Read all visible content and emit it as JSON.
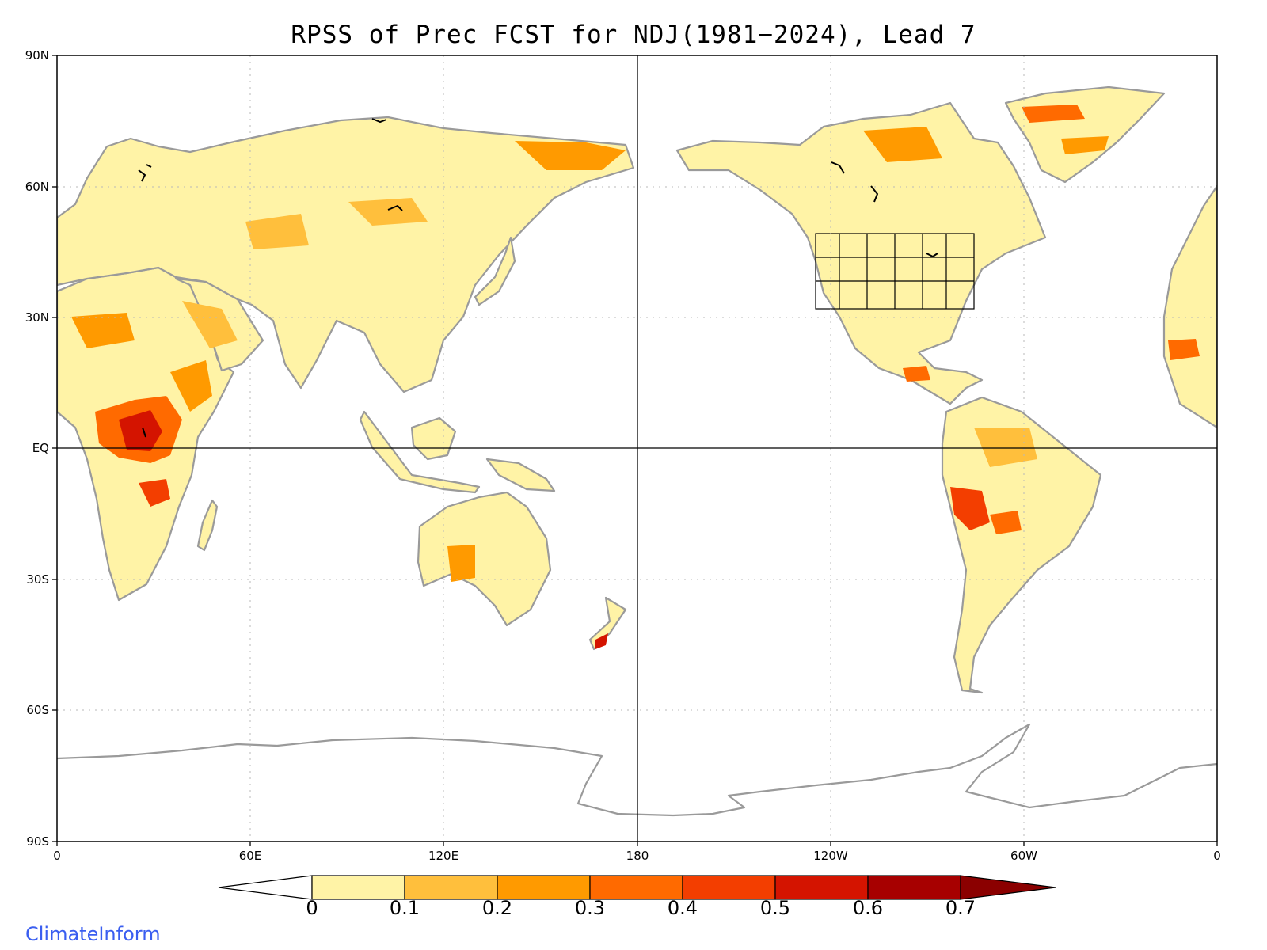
{
  "title": "RPSS of Prec FCST for NDJ(1981−2024), Lead 7",
  "credit": "ClimateInform",
  "axes": {
    "lat_labels": [
      "90N",
      "60N",
      "30N",
      "EQ",
      "30S",
      "60S",
      "90S"
    ],
    "lon_labels": [
      "0",
      "60E",
      "120E",
      "180",
      "120W",
      "60W",
      "0"
    ]
  },
  "colorbar": {
    "labels": [
      "0",
      "0.1",
      "0.2",
      "0.3",
      "0.4",
      "0.5",
      "0.6",
      "0.7"
    ],
    "colors": [
      "#ffffff",
      "#fff3a6",
      "#ffbf3c",
      "#ff9a00",
      "#ff6a00",
      "#f33e00",
      "#d41400",
      "#a70000",
      "#8b0000"
    ]
  },
  "colors": {
    "land_outline": "#9a9a9a",
    "lakes_states": "#000000",
    "grid": "#b8b8b8",
    "credit": "#3a5ef0"
  }
}
